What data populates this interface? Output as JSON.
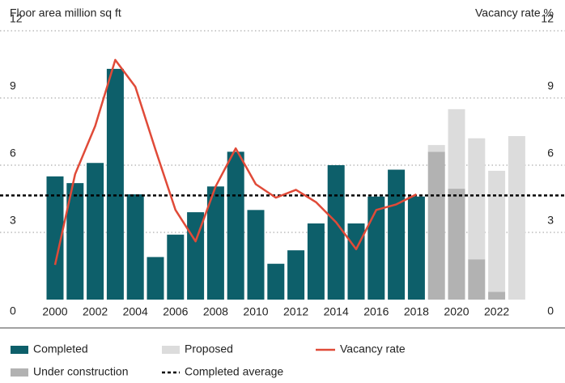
{
  "chart_data": {
    "type": "bar",
    "y_label": "Floor area million sq ft",
    "y2_label": "Vacancy rate %",
    "categories": [
      "2000",
      null,
      "2002",
      null,
      "2004",
      null,
      "2006",
      null,
      "2008",
      null,
      "2010",
      null,
      "2012",
      null,
      "2014",
      null,
      "2016",
      null,
      "2018",
      null,
      "2020",
      null,
      "2022",
      null
    ],
    "series": [
      {
        "name": "Completed",
        "color": "#0d5f6a",
        "values": [
          5.5,
          5.2,
          6.1,
          10.3,
          4.7,
          1.9,
          2.9,
          3.9,
          5.05,
          6.6,
          4.0,
          1.6,
          2.2,
          3.4,
          6.0,
          3.4,
          4.6,
          5.8,
          4.6,
          null,
          null,
          null,
          null,
          null
        ]
      },
      {
        "name": "Under construction",
        "color": "#b2b2b2",
        "values": [
          null,
          null,
          null,
          null,
          null,
          null,
          null,
          null,
          null,
          null,
          null,
          null,
          null,
          null,
          null,
          null,
          null,
          null,
          null,
          6.6,
          4.95,
          1.8,
          0.35,
          0
        ]
      },
      {
        "name": "Proposed",
        "color": "#dcdcdc",
        "values": [
          null,
          null,
          null,
          null,
          null,
          null,
          null,
          null,
          null,
          null,
          null,
          null,
          null,
          null,
          null,
          null,
          null,
          null,
          null,
          0.3,
          3.55,
          5.4,
          5.4,
          7.3
        ]
      },
      {
        "name": "Vacancy rate",
        "color": "#e04a38",
        "type": "line",
        "axis": "y2",
        "values": [
          1.55,
          5.6,
          7.75,
          10.7,
          9.5,
          6.7,
          4.0,
          2.6,
          5.05,
          6.75,
          5.15,
          4.55,
          4.9,
          4.35,
          3.45,
          2.25,
          4.0,
          4.25,
          4.7,
          null,
          null,
          null,
          null,
          null
        ]
      }
    ],
    "reference_line": {
      "name": "Completed average",
      "value": 4.65,
      "color": "#000000"
    },
    "ylim": [
      0,
      12
    ],
    "yticks": [
      0,
      3,
      6,
      9,
      12
    ],
    "y2lim": [
      0,
      12
    ],
    "y2ticks": [
      0,
      3,
      6,
      9,
      12
    ],
    "grid": true
  }
}
